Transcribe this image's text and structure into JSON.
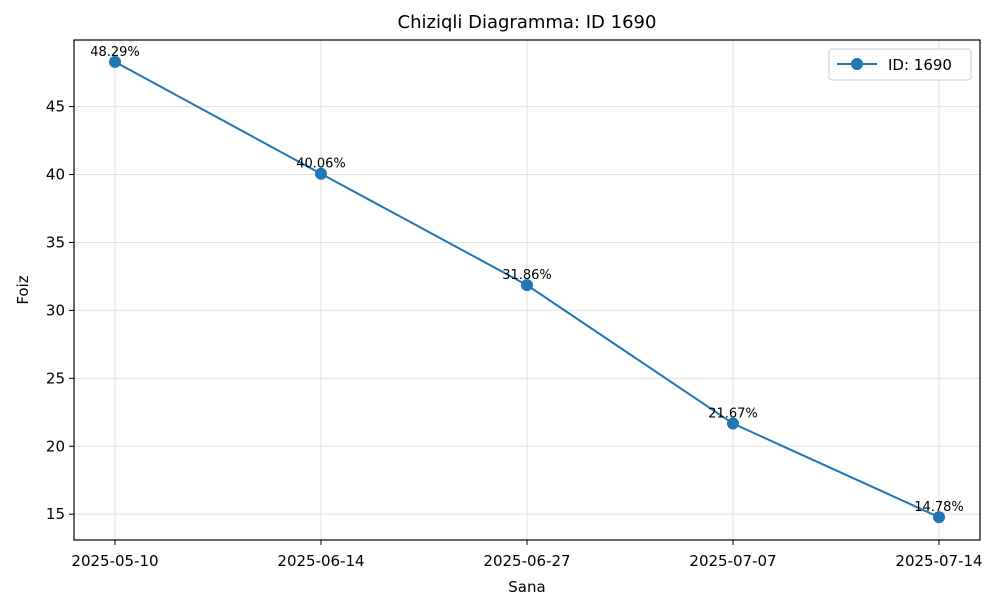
{
  "chart_data": {
    "type": "line",
    "title": "Chiziqli Diagramma: ID 1690",
    "xlabel": "Sana",
    "ylabel": "Foiz",
    "categories": [
      "2025-05-10",
      "2025-06-14",
      "2025-06-27",
      "2025-07-07",
      "2025-07-14"
    ],
    "series": [
      {
        "name": "ID: 1690",
        "values": [
          48.29,
          40.06,
          31.86,
          21.67,
          14.78
        ],
        "labels": [
          "48.29%",
          "40.06%",
          "31.86%",
          "21.67%",
          "14.78%"
        ],
        "color": "#1f77b4",
        "marker": "circle"
      }
    ],
    "yticks": [
      "15",
      "20",
      "25",
      "30",
      "35",
      "40",
      "45"
    ],
    "ylim": [
      13.1,
      49.9
    ],
    "grid": true,
    "legend_position": "top-right"
  }
}
